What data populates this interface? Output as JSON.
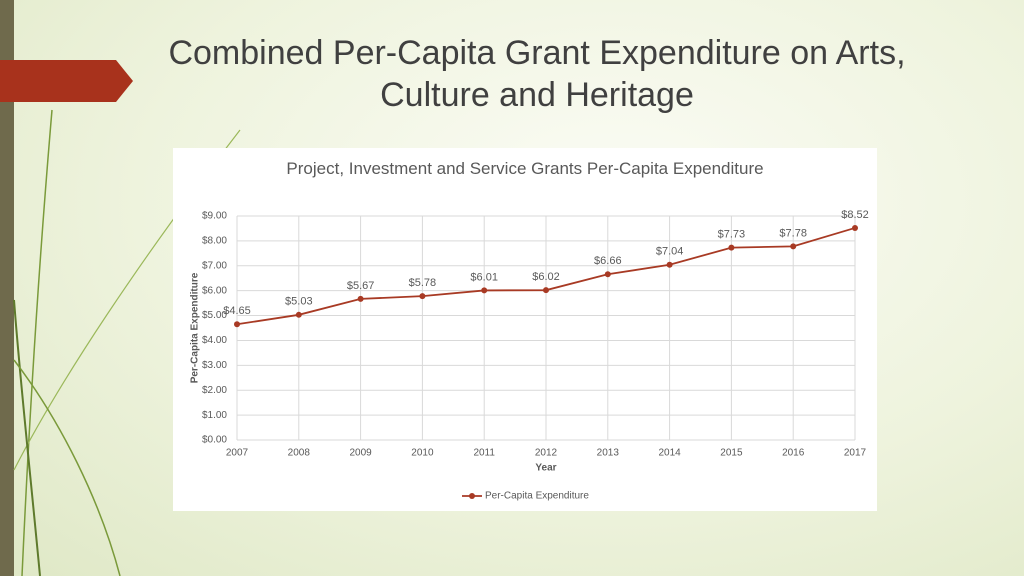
{
  "slide": {
    "title": "Combined Per-Capita Grant Expenditure on Arts, Culture and Heritage"
  },
  "chart_data": {
    "type": "line",
    "title": "Project, Investment and Service Grants Per-Capita Expenditure",
    "x_label": "Year",
    "y_label": "Per-Capita Expenditure",
    "categories": [
      "2007",
      "2008",
      "2009",
      "2010",
      "2011",
      "2012",
      "2013",
      "2014",
      "2015",
      "2016",
      "2017"
    ],
    "series": [
      {
        "name": "Per-Capita Expenditure",
        "color": "#a83a24",
        "values": [
          4.65,
          5.03,
          5.67,
          5.78,
          6.01,
          6.02,
          6.66,
          7.04,
          7.73,
          7.78,
          8.52
        ],
        "value_labels": [
          "$4.65",
          "$5.03",
          "$5.67",
          "$5.78",
          "$6.01",
          "$6.02",
          "$6.66",
          "$7.04",
          "$7.73",
          "$7.78",
          "$8.52"
        ]
      }
    ],
    "ylim": [
      0,
      9
    ],
    "yticks": [
      {
        "value": 0,
        "label": "$0.00"
      },
      {
        "value": 1,
        "label": "$1.00"
      },
      {
        "value": 2,
        "label": "$2.00"
      },
      {
        "value": 3,
        "label": "$3.00"
      },
      {
        "value": 4,
        "label": "$4.00"
      },
      {
        "value": 5,
        "label": "$5.00"
      },
      {
        "value": 6,
        "label": "$6.00"
      },
      {
        "value": 7,
        "label": "$7.00"
      },
      {
        "value": 8,
        "label": "$8.00"
      },
      {
        "value": 9,
        "label": "$9.00"
      }
    ],
    "grid": true,
    "legend": "bottom"
  }
}
